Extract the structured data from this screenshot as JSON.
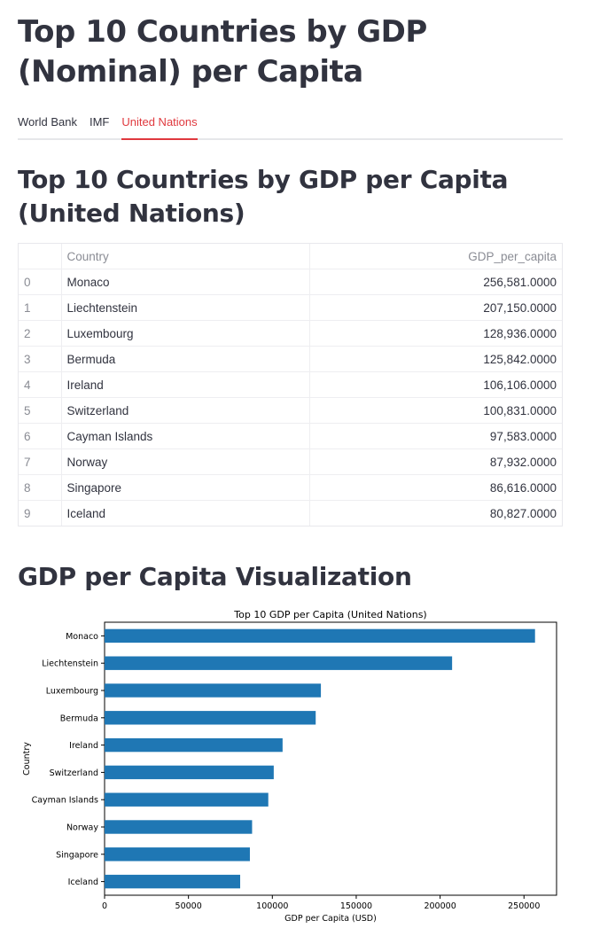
{
  "page": {
    "title": "Top 10 Countries by GDP (Nominal) per Capita"
  },
  "tabs": [
    {
      "label": "World Bank",
      "active": false
    },
    {
      "label": "IMF",
      "active": false
    },
    {
      "label": "United Nations",
      "active": true
    }
  ],
  "section": {
    "title": "Top 10 Countries by GDP per Capita (United Nations)"
  },
  "table": {
    "columns": [
      "",
      "Country",
      "GDP_per_capita"
    ],
    "rows": [
      {
        "index": "0",
        "country": "Monaco",
        "gdp": "256,581.0000"
      },
      {
        "index": "1",
        "country": "Liechtenstein",
        "gdp": "207,150.0000"
      },
      {
        "index": "2",
        "country": "Luxembourg",
        "gdp": "128,936.0000"
      },
      {
        "index": "3",
        "country": "Bermuda",
        "gdp": "125,842.0000"
      },
      {
        "index": "4",
        "country": "Ireland",
        "gdp": "106,106.0000"
      },
      {
        "index": "5",
        "country": "Switzerland",
        "gdp": "100,831.0000"
      },
      {
        "index": "6",
        "country": "Cayman Islands",
        "gdp": "97,583.0000"
      },
      {
        "index": "7",
        "country": "Norway",
        "gdp": "87,932.0000"
      },
      {
        "index": "8",
        "country": "Singapore",
        "gdp": "86,616.0000"
      },
      {
        "index": "9",
        "country": "Iceland",
        "gdp": "80,827.0000"
      }
    ]
  },
  "visualization": {
    "title": "GDP per Capita Visualization"
  },
  "chart_data": {
    "type": "bar",
    "orientation": "horizontal",
    "title": "Top 10 GDP per Capita (United Nations)",
    "xlabel": "GDP per Capita (USD)",
    "ylabel": "Country",
    "categories": [
      "Monaco",
      "Liechtenstein",
      "Luxembourg",
      "Bermuda",
      "Ireland",
      "Switzerland",
      "Cayman Islands",
      "Norway",
      "Singapore",
      "Iceland"
    ],
    "values": [
      256581,
      207150,
      128936,
      125842,
      106106,
      100831,
      97583,
      87932,
      86616,
      80827
    ],
    "xlim": [
      0,
      269410
    ],
    "xticks": [
      0,
      50000,
      100000,
      150000,
      200000,
      250000
    ],
    "xtick_labels": [
      "0",
      "50000",
      "100000",
      "150000",
      "200000",
      "250000"
    ],
    "bar_color": "#1f77b4",
    "grid": false
  },
  "colors": {
    "accent": "#e0393e",
    "text": "#31333f",
    "muted": "#8a8c94"
  }
}
